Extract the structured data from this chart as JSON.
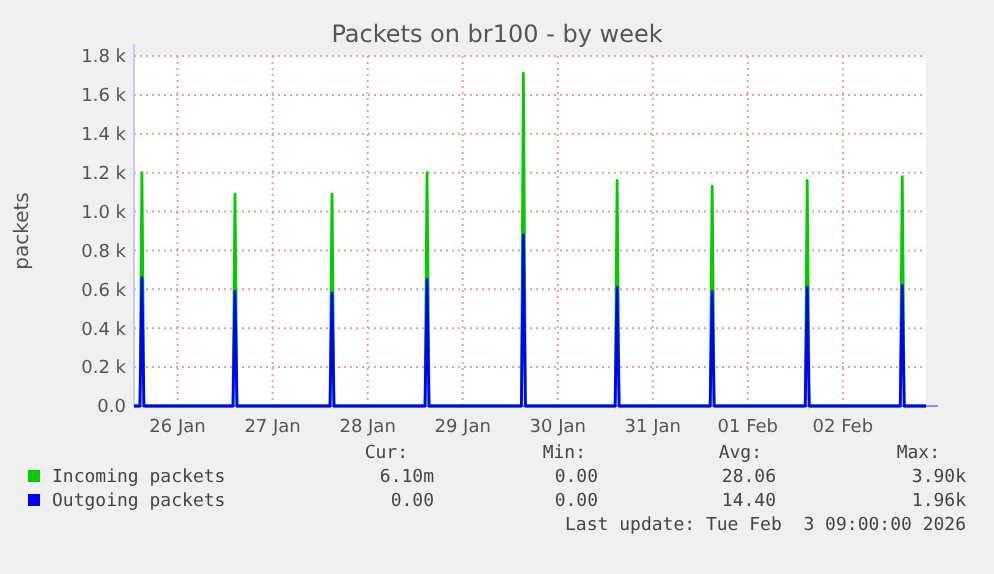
{
  "chart_data": {
    "type": "line",
    "title": "Packets on br100 - by week",
    "ylabel": "packets",
    "xlim": [
      "2026-01-26T01:00",
      "2026-02-03T09:00"
    ],
    "xticks": [
      {
        "value": "2026-01-26T12:00",
        "label": "26 Jan"
      },
      {
        "value": "2026-01-27T12:00",
        "label": "27 Jan"
      },
      {
        "value": "2026-01-28T12:00",
        "label": "28 Jan"
      },
      {
        "value": "2026-01-29T12:00",
        "label": "29 Jan"
      },
      {
        "value": "2026-01-30T12:00",
        "label": "30 Jan"
      },
      {
        "value": "2026-01-31T12:00",
        "label": "31 Jan"
      },
      {
        "value": "2026-02-01T12:00",
        "label": "01 Feb"
      },
      {
        "value": "2026-02-02T12:00",
        "label": "02 Feb"
      }
    ],
    "ylim": [
      0,
      1800
    ],
    "yticks": [
      {
        "value": 0,
        "label": "0.0"
      },
      {
        "value": 200,
        "label": "0.2 k"
      },
      {
        "value": 400,
        "label": "0.4 k"
      },
      {
        "value": 600,
        "label": "0.6 k"
      },
      {
        "value": 800,
        "label": "0.8 k"
      },
      {
        "value": 1000,
        "label": "1.0 k"
      },
      {
        "value": 1200,
        "label": "1.2 k"
      },
      {
        "value": 1400,
        "label": "1.4 k"
      },
      {
        "value": 1600,
        "label": "1.6 k"
      },
      {
        "value": 1800,
        "label": "1.8 k"
      }
    ],
    "grid": true,
    "legend": "bottom",
    "x": [
      "2026-01-26T01:00",
      "2026-01-26T02:30",
      "2026-01-26T03:00",
      "2026-01-26T03:30",
      "2026-01-27T02:00",
      "2026-01-27T02:30",
      "2026-01-27T03:00",
      "2026-01-28T02:30",
      "2026-01-28T03:00",
      "2026-01-28T03:30",
      "2026-01-29T02:30",
      "2026-01-29T03:00",
      "2026-01-29T03:30",
      "2026-01-30T02:50",
      "2026-01-30T03:20",
      "2026-01-30T03:50",
      "2026-01-31T02:30",
      "2026-01-31T03:00",
      "2026-01-31T03:30",
      "2026-02-01T02:30",
      "2026-02-01T03:00",
      "2026-02-01T03:30",
      "2026-02-02T02:30",
      "2026-02-02T03:00",
      "2026-02-02T03:30",
      "2026-02-03T02:30",
      "2026-02-03T03:00",
      "2026-02-03T03:30",
      "2026-02-03T09:00"
    ],
    "series": [
      {
        "name": "Incoming packets",
        "color": "#00cc00",
        "values": [
          0,
          0,
          1200,
          0,
          0,
          1090,
          0,
          0,
          1090,
          0,
          0,
          1200,
          0,
          0,
          1710,
          0,
          0,
          1160,
          0,
          0,
          1130,
          0,
          0,
          1160,
          0,
          0,
          1180,
          0,
          0
        ]
      },
      {
        "name": "Outgoing packets",
        "color": "#0000ff",
        "values": [
          0,
          0,
          660,
          0,
          0,
          590,
          0,
          0,
          580,
          0,
          0,
          650,
          0,
          0,
          880,
          0,
          0,
          610,
          0,
          0,
          590,
          0,
          0,
          610,
          0,
          0,
          620,
          0,
          0
        ]
      }
    ],
    "annotations": [
      "Cur:",
      "Min:",
      "Avg:",
      "Max:",
      "6.10m",
      "0.00",
      "28.06",
      "3.90k",
      "0.00",
      "0.00",
      "14.40",
      "1.96k",
      "Last update: Tue Feb  3 09:00:00 2026"
    ]
  }
}
